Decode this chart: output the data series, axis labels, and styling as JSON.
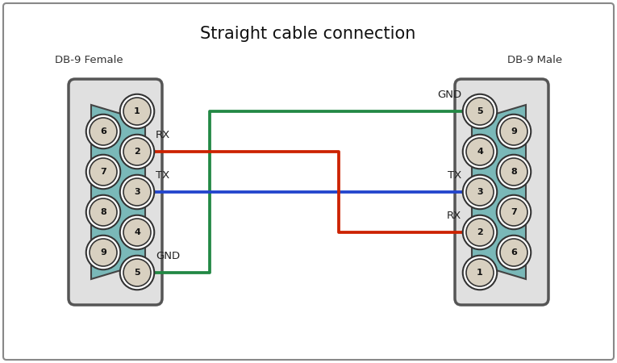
{
  "title": "Straight cable connection",
  "title_fontsize": 15,
  "bg_color": "#ffffff",
  "connector_teal": "#7ab8b8",
  "connector_outer": "#cccccc",
  "pin_fill": "#d8d0c0",
  "pin_border": "#222222",
  "left_label": "DB-9 Female",
  "right_label": "DB-9 Male",
  "wire_red": "#cc2200",
  "wire_blue": "#2244cc",
  "wire_green": "#228844",
  "lw_wire": 1.8,
  "label_fs": 9,
  "pin_fs": 8,
  "pin_r": 0.03
}
